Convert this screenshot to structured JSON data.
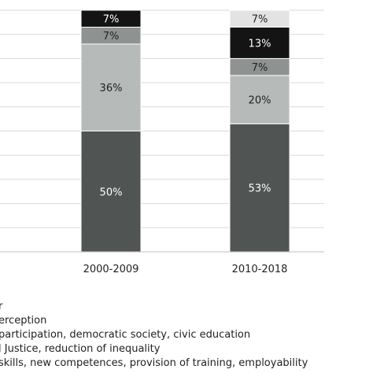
{
  "chart_data": {
    "type": "bar",
    "stacked": true,
    "percent": true,
    "categories": [
      "2000-2009",
      "2010-2018"
    ],
    "series": [
      {
        "name": "",
        "values": [
          50,
          53
        ],
        "labels": [
          "50%",
          "53%"
        ],
        "color": "#505453",
        "label_color": "#ffffff"
      },
      {
        "name": "",
        "values": [
          36,
          20
        ],
        "labels": [
          "36%",
          "20%"
        ],
        "color": "#b6bab8",
        "label_color": "#222222"
      },
      {
        "name": "",
        "values": [
          7,
          7
        ],
        "labels": [
          "7%",
          "7%"
        ],
        "color": "#8e9391",
        "label_color": "#222222"
      },
      {
        "name": "",
        "values": [
          7,
          13
        ],
        "labels": [
          "7%",
          "13%"
        ],
        "color": "#141414",
        "label_color": "#ffffff"
      },
      {
        "name": "",
        "values": [
          0,
          7
        ],
        "labels": [
          "",
          "7%"
        ],
        "color": "#e3e3e3",
        "label_color": "#222222"
      }
    ],
    "ylim": [
      0,
      100
    ],
    "grid": true,
    "legend_position": "bottom"
  },
  "legend": [
    {
      "text": "r"
    },
    {
      "text": "erception"
    },
    {
      "text": "participation, democratic  society, civic education"
    },
    {
      "text": "l Justice, reduction of inequality"
    },
    {
      "text": "skills, new competences, provision of training, employability"
    }
  ]
}
